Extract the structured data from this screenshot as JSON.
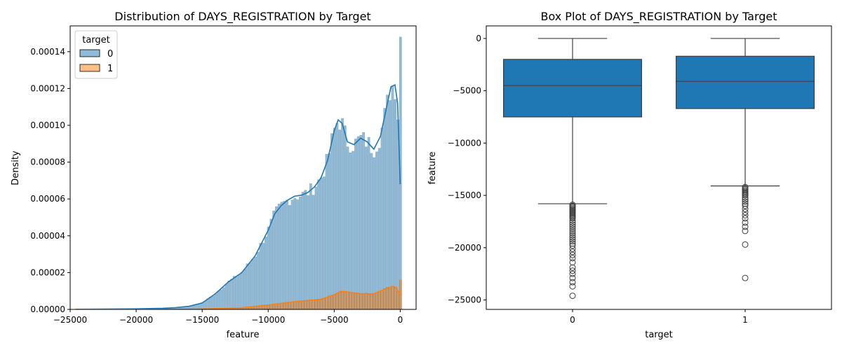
{
  "chart_data": [
    {
      "type": "histogram",
      "title": "Distribution of DAYS_REGISTRATION by Target",
      "xlabel": "feature",
      "ylabel": "Density",
      "xlim": [
        -25000,
        1200
      ],
      "ylim": [
        0,
        0.000154
      ],
      "xticks": [
        -25000,
        -20000,
        -15000,
        -10000,
        -5000,
        0
      ],
      "xtick_labels": [
        "−25000",
        "−20000",
        "−15000",
        "−10000",
        "−5000",
        "0"
      ],
      "yticks": [
        0,
        2e-05,
        4e-05,
        6e-05,
        8e-05,
        0.0001,
        0.00012,
        0.00014
      ],
      "ytick_labels": [
        "0.00000",
        "0.00002",
        "0.00004",
        "0.00006",
        "0.00008",
        "0.00010",
        "0.00012",
        "0.00014"
      ],
      "legend": {
        "title": "target",
        "position": "top-left",
        "entries": [
          {
            "label": "0",
            "color": "#1f77b4"
          },
          {
            "label": "1",
            "color": "#ff7f0e"
          }
        ]
      },
      "bin_start": -24672,
      "bin_width": 200,
      "series": [
        {
          "name": "0",
          "color": "#1f77b4",
          "kde": [
            [
              -24600,
              1e-07
            ],
            [
              -20000,
              3e-07
            ],
            [
              -18000,
              6e-07
            ],
            [
              -17000,
              1e-06
            ],
            [
              -16000,
              1.7e-06
            ],
            [
              -15000,
              3.5e-06
            ],
            [
              -14000,
              8.5e-06
            ],
            [
              -13000,
              1.5e-05
            ],
            [
              -12000,
              2e-05
            ],
            [
              -11000,
              2.9e-05
            ],
            [
              -10000,
              4.3e-05
            ],
            [
              -9500,
              5.2e-05
            ],
            [
              -9000,
              5.65e-05
            ],
            [
              -8500,
              5.95e-05
            ],
            [
              -8000,
              6.15e-05
            ],
            [
              -7500,
              6.2e-05
            ],
            [
              -7000,
              6.35e-05
            ],
            [
              -6500,
              6.65e-05
            ],
            [
              -6000,
              7.15e-05
            ],
            [
              -5500,
              8.1e-05
            ],
            [
              -5000,
              9.7e-05
            ],
            [
              -4700,
              0.000103
            ],
            [
              -4400,
              0.000101
            ],
            [
              -4000,
              9.1e-05
            ],
            [
              -3500,
              8.95e-05
            ],
            [
              -3000,
              9.3e-05
            ],
            [
              -2500,
              9.1e-05
            ],
            [
              -2000,
              8.7e-05
            ],
            [
              -1500,
              9.4e-05
            ],
            [
              -1000,
              0.000111
            ],
            [
              -700,
              0.000121
            ],
            [
              -400,
              0.000122
            ],
            [
              -200,
              0.000112
            ],
            [
              0,
              6.8e-05
            ]
          ]
        },
        {
          "name": "1",
          "color": "#ff7f0e",
          "kde": [
            [
              -24600,
              1e-07
            ],
            [
              -16000,
              1e-07
            ],
            [
              -14000,
              4e-07
            ],
            [
              -12000,
              9e-07
            ],
            [
              -10000,
              2.4e-06
            ],
            [
              -8000,
              4.2e-06
            ],
            [
              -6000,
              5.5e-06
            ],
            [
              -5000,
              8e-06
            ],
            [
              -4500,
              9.8e-06
            ],
            [
              -4000,
              9.5e-06
            ],
            [
              -3000,
              8.5e-06
            ],
            [
              -2000,
              8.5e-06
            ],
            [
              -1000,
              1.15e-05
            ],
            [
              -600,
              1.25e-05
            ],
            [
              -300,
              1.2e-05
            ],
            [
              0,
              7.5e-06
            ]
          ]
        }
      ]
    },
    {
      "type": "box",
      "title": "Box Plot of DAYS_REGISTRATION by Target",
      "xlabel": "target",
      "ylabel": "feature",
      "categories": [
        "0",
        "1"
      ],
      "ylim": [
        -25900,
        1200
      ],
      "yticks": [
        0,
        -5000,
        -10000,
        -15000,
        -20000,
        -25000
      ],
      "ytick_labels": [
        "0",
        "−5000",
        "−10000",
        "−15000",
        "−20000",
        "−25000"
      ],
      "color": "#1f77b4",
      "boxes": [
        {
          "name": "0",
          "q1": -7500,
          "median": -4500,
          "q3": -2000,
          "whisker_low": -15800,
          "whisker_high": 0,
          "outliers": [
            -15900,
            -16000,
            -16100,
            -16200,
            -16300,
            -16400,
            -16500,
            -16600,
            -16700,
            -16800,
            -16900,
            -17000,
            -17100,
            -17200,
            -17400,
            -17600,
            -17800,
            -18000,
            -18200,
            -18400,
            -18600,
            -18800,
            -19000,
            -19200,
            -19400,
            -19600,
            -19800,
            -20100,
            -20400,
            -20700,
            -21000,
            -21400,
            -21900,
            -22200,
            -22500,
            -22900,
            -23300,
            -23700,
            -24600
          ]
        },
        {
          "name": "1",
          "q1": -6700,
          "median": -4100,
          "q3": -1700,
          "whisker_low": -14100,
          "whisker_high": 0,
          "outliers": [
            -14200,
            -14300,
            -14400,
            -14500,
            -14600,
            -14700,
            -14800,
            -14900,
            -15000,
            -15200,
            -15400,
            -15600,
            -15800,
            -16000,
            -16300,
            -16600,
            -16900,
            -17200,
            -17600,
            -18000,
            -18400,
            -19700,
            -22900
          ]
        }
      ]
    }
  ]
}
